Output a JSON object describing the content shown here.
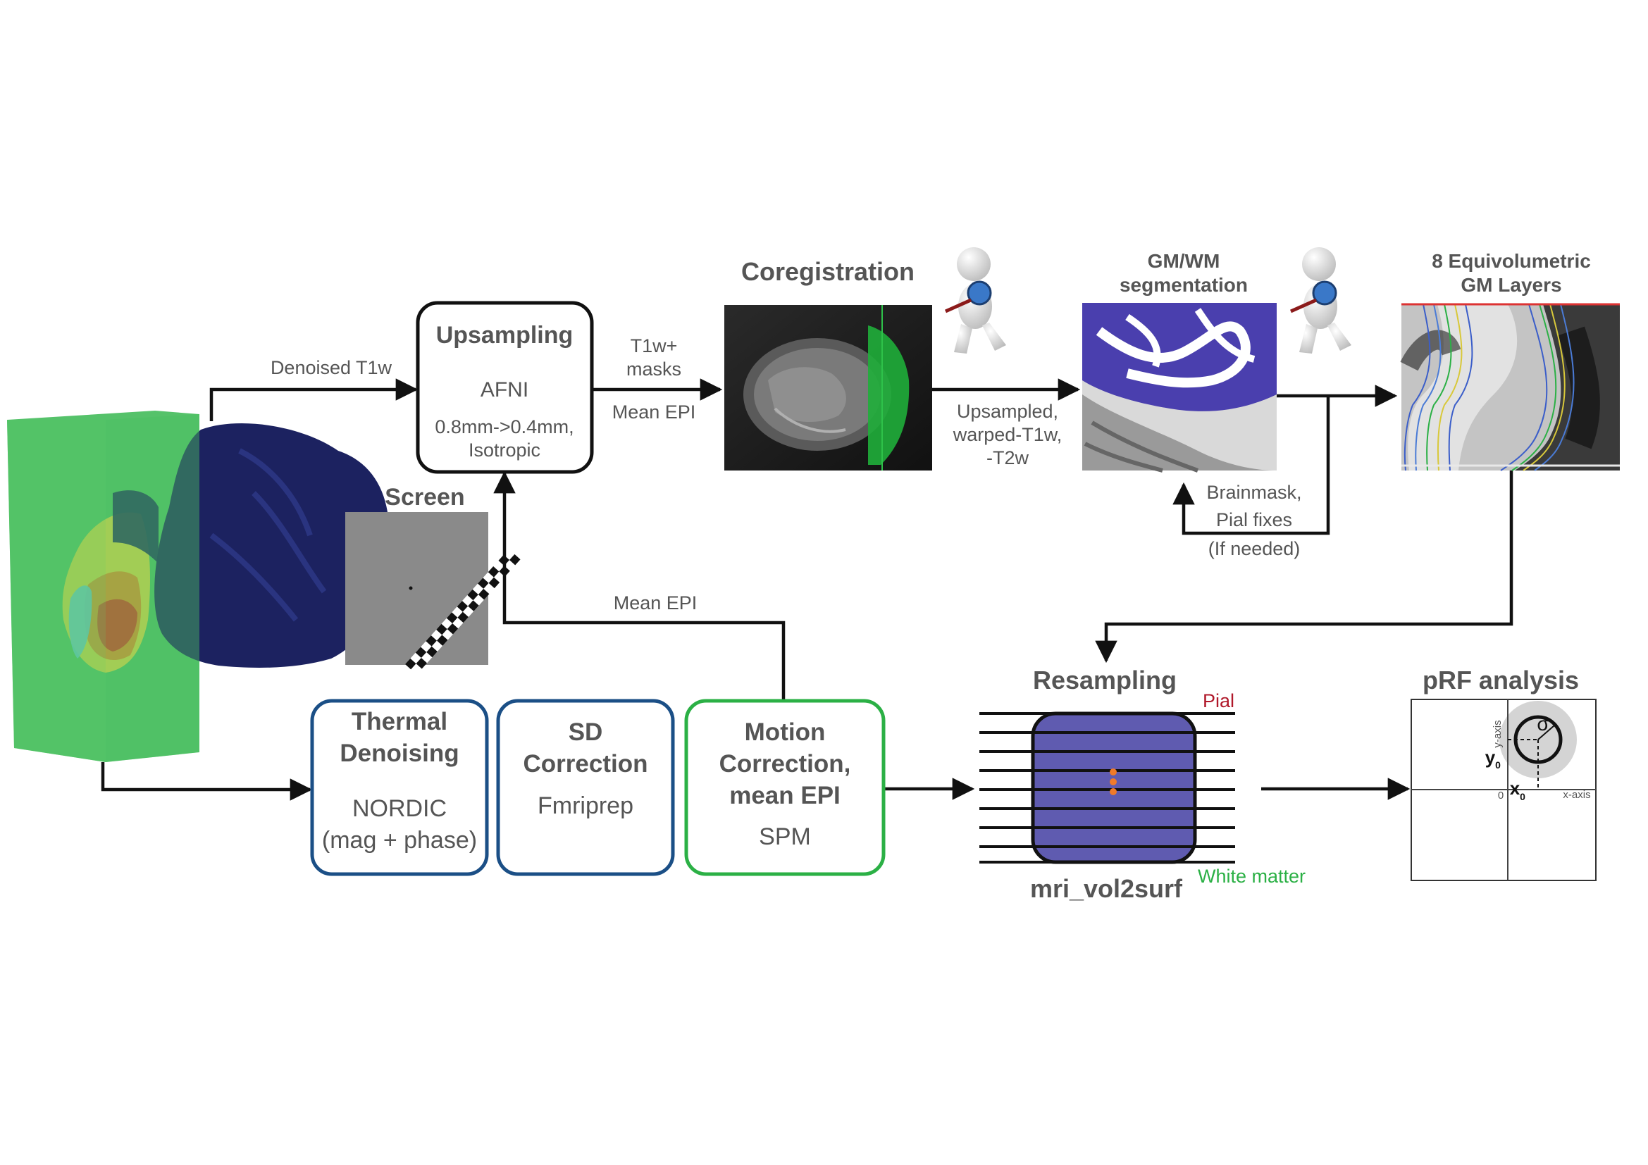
{
  "colors": {
    "dark_border": "#111111",
    "blue_border": "#1b4f86",
    "green_border": "#2bb045",
    "pial_red": "#b0182a",
    "white_matter_green": "#2bb045",
    "resampling_purple": "#5f5bb0"
  },
  "screen": {
    "title": "Screen"
  },
  "upsampling": {
    "title": "Upsampling",
    "tool": "AFNI",
    "detail_line1": "0.8mm->0.4mm,",
    "detail_line2": "Isotropic"
  },
  "arrows": {
    "denoised_t1w": "Denoised T1w",
    "t1w_masks_line1": "T1w+",
    "t1w_masks_line2": "masks",
    "mean_epi_top": "Mean EPI",
    "upsampled_line1": "Upsampled,",
    "upsampled_line2": "warped-T1w,",
    "upsampled_line3": "-T2w",
    "brainmask_line1": "Brainmask,",
    "brainmask_line2": "Pial fixes",
    "brainmask_line3": "(If needed)",
    "mean_epi_bottom": "Mean EPI"
  },
  "coregistration": {
    "title": "Coregistration"
  },
  "gmwm": {
    "title_line1": "GM/WM",
    "title_line2": "segmentation"
  },
  "layers": {
    "title_line1": "8 Equivolumetric",
    "title_line2": "GM Layers"
  },
  "thermal": {
    "title_line1": "Thermal",
    "title_line2": "Denoising",
    "tool": "NORDIC",
    "detail": "(mag + phase)"
  },
  "sd": {
    "title_line1": "SD",
    "title_line2": "Correction",
    "tool": "Fmriprep"
  },
  "motion": {
    "title_line1": "Motion",
    "title_line2": "Correction,",
    "title_line3": "mean EPI",
    "tool": "SPM"
  },
  "resampling": {
    "title": "Resampling",
    "pial": "Pial",
    "white_matter": "White matter",
    "tool": "mri_vol2surf"
  },
  "prf": {
    "title": "pRF analysis",
    "y_axis": "y-axis",
    "x_axis": "x-axis",
    "y0": "y",
    "y0_sub": "0",
    "x0": "x",
    "x0_sub": "0",
    "origin": "0",
    "sigma": "σ"
  }
}
